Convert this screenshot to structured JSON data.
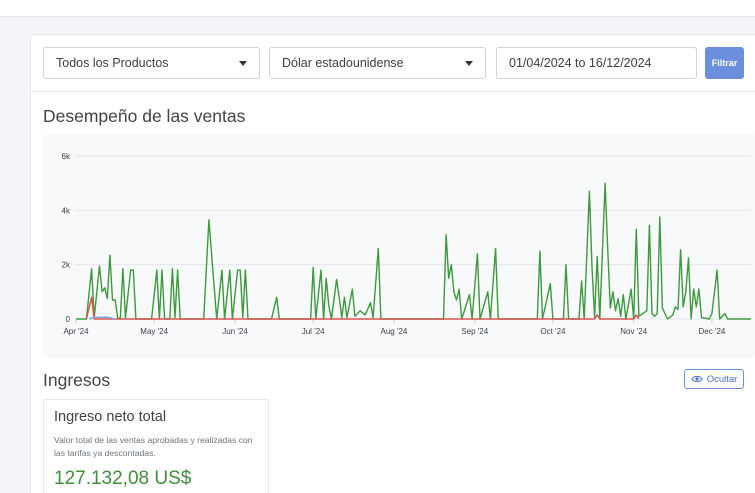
{
  "filters": {
    "product": "Todos los Productos",
    "currency": "Dólar estadounidense",
    "date_range": "01/04/2024 to 16/12/2024",
    "filter_button": "Filtrar"
  },
  "sales": {
    "title": "Desempeño de las ventas"
  },
  "chart_data": {
    "type": "line",
    "x_ticks": [
      "Apr '24",
      "May '24",
      "Jun '24",
      "Jul '24",
      "Aug '24",
      "Sep '24",
      "Oct '24",
      "Nov '24",
      "Dec '24"
    ],
    "y_ticks": [
      "0",
      "2k",
      "4k",
      "6k"
    ],
    "ylim": [
      0,
      6000
    ],
    "xlim": [
      "2024-04-01",
      "2024-12-16"
    ],
    "grid": true,
    "colors": [
      "#3c9a3c",
      "#d9534f",
      "#7aa7d9"
    ],
    "series": [
      {
        "color": "#3c9a3c",
        "points": [
          [
            "2024-04-01",
            0
          ],
          [
            "2024-04-05",
            0
          ],
          [
            "2024-04-07",
            1850
          ],
          [
            "2024-04-08",
            50
          ],
          [
            "2024-04-10",
            1950
          ],
          [
            "2024-04-11",
            1000
          ],
          [
            "2024-04-12",
            1150
          ],
          [
            "2024-04-13",
            750
          ],
          [
            "2024-04-14",
            2350
          ],
          [
            "2024-04-15",
            700
          ],
          [
            "2024-04-16",
            700
          ],
          [
            "2024-04-17",
            50
          ],
          [
            "2024-04-18",
            0
          ],
          [
            "2024-04-19",
            1850
          ],
          [
            "2024-04-20",
            50
          ],
          [
            "2024-04-22",
            1800
          ],
          [
            "2024-04-23",
            1800
          ],
          [
            "2024-04-24",
            0
          ],
          [
            "2024-04-30",
            0
          ],
          [
            "2024-05-02",
            1800
          ],
          [
            "2024-05-03",
            0
          ],
          [
            "2024-05-04",
            1800
          ],
          [
            "2024-05-05",
            0
          ],
          [
            "2024-05-07",
            0
          ],
          [
            "2024-05-08",
            1850
          ],
          [
            "2024-05-09",
            50
          ],
          [
            "2024-05-10",
            1800
          ],
          [
            "2024-05-11",
            0
          ],
          [
            "2024-05-20",
            0
          ],
          [
            "2024-05-22",
            3650
          ],
          [
            "2024-05-25",
            0
          ],
          [
            "2024-05-27",
            1800
          ],
          [
            "2024-05-28",
            0
          ],
          [
            "2024-05-30",
            1800
          ],
          [
            "2024-05-31",
            0
          ],
          [
            "2024-06-02",
            1800
          ],
          [
            "2024-06-03",
            1800
          ],
          [
            "2024-06-04",
            50
          ],
          [
            "2024-06-05",
            1800
          ],
          [
            "2024-06-06",
            0
          ],
          [
            "2024-06-15",
            0
          ],
          [
            "2024-06-17",
            800
          ],
          [
            "2024-06-18",
            0
          ],
          [
            "2024-06-30",
            0
          ],
          [
            "2024-07-01",
            1900
          ],
          [
            "2024-07-02",
            0
          ],
          [
            "2024-07-04",
            1800
          ],
          [
            "2024-07-05",
            0
          ],
          [
            "2024-07-06",
            1500
          ],
          [
            "2024-07-07",
            500
          ],
          [
            "2024-07-08",
            0
          ],
          [
            "2024-07-10",
            1450
          ],
          [
            "2024-07-11",
            800
          ],
          [
            "2024-07-12",
            50
          ],
          [
            "2024-07-13",
            800
          ],
          [
            "2024-07-14",
            50
          ],
          [
            "2024-07-16",
            1100
          ],
          [
            "2024-07-17",
            100
          ],
          [
            "2024-07-19",
            300
          ],
          [
            "2024-07-21",
            150
          ],
          [
            "2024-07-23",
            600
          ],
          [
            "2024-07-24",
            50
          ],
          [
            "2024-07-26",
            2600
          ],
          [
            "2024-07-27",
            0
          ],
          [
            "2024-08-20",
            0
          ],
          [
            "2024-08-21",
            3100
          ],
          [
            "2024-08-22",
            1500
          ],
          [
            "2024-08-23",
            2000
          ],
          [
            "2024-08-24",
            1000
          ],
          [
            "2024-08-25",
            700
          ],
          [
            "2024-08-26",
            1100
          ],
          [
            "2024-08-27",
            0
          ],
          [
            "2024-08-30",
            900
          ],
          [
            "2024-08-31",
            0
          ],
          [
            "2024-09-02",
            2400
          ],
          [
            "2024-09-03",
            0
          ],
          [
            "2024-09-06",
            1000
          ],
          [
            "2024-09-07",
            0
          ],
          [
            "2024-09-09",
            2600
          ],
          [
            "2024-09-10",
            0
          ],
          [
            "2024-09-25",
            0
          ],
          [
            "2024-09-26",
            2500
          ],
          [
            "2024-09-27",
            0
          ],
          [
            "2024-09-30",
            1300
          ],
          [
            "2024-10-01",
            0
          ],
          [
            "2024-10-05",
            0
          ],
          [
            "2024-10-06",
            2000
          ],
          [
            "2024-10-07",
            0
          ],
          [
            "2024-10-11",
            0
          ],
          [
            "2024-10-12",
            1400
          ],
          [
            "2024-10-13",
            0
          ],
          [
            "2024-10-15",
            4700
          ],
          [
            "2024-10-16",
            1900
          ],
          [
            "2024-10-17",
            50
          ],
          [
            "2024-10-18",
            2300
          ],
          [
            "2024-10-19",
            0
          ],
          [
            "2024-10-21",
            5000
          ],
          [
            "2024-10-22",
            2600
          ],
          [
            "2024-10-23",
            400
          ],
          [
            "2024-10-24",
            1000
          ],
          [
            "2024-10-25",
            300
          ],
          [
            "2024-10-26",
            750
          ],
          [
            "2024-10-27",
            100
          ],
          [
            "2024-10-28",
            900
          ],
          [
            "2024-10-29",
            0
          ],
          [
            "2024-10-31",
            1100
          ],
          [
            "2024-11-01",
            0
          ],
          [
            "2024-11-02",
            3300
          ],
          [
            "2024-11-03",
            100
          ],
          [
            "2024-11-06",
            300
          ],
          [
            "2024-11-07",
            3450
          ],
          [
            "2024-11-08",
            200
          ],
          [
            "2024-11-09",
            100
          ],
          [
            "2024-11-10",
            200
          ],
          [
            "2024-11-11",
            3750
          ],
          [
            "2024-11-12",
            400
          ],
          [
            "2024-11-14",
            0
          ],
          [
            "2024-11-16",
            150
          ],
          [
            "2024-11-17",
            450
          ],
          [
            "2024-11-18",
            350
          ],
          [
            "2024-11-19",
            2550
          ],
          [
            "2024-11-20",
            450
          ],
          [
            "2024-11-21",
            1000
          ],
          [
            "2024-11-22",
            2250
          ],
          [
            "2024-11-23",
            0
          ],
          [
            "2024-11-24",
            1100
          ],
          [
            "2024-11-25",
            450
          ],
          [
            "2024-11-26",
            1100
          ],
          [
            "2024-11-27",
            50
          ],
          [
            "2024-11-30",
            0
          ],
          [
            "2024-12-01",
            200
          ],
          [
            "2024-12-03",
            1800
          ],
          [
            "2024-12-04",
            0
          ],
          [
            "2024-12-06",
            200
          ],
          [
            "2024-12-07",
            0
          ],
          [
            "2024-12-16",
            0
          ]
        ]
      },
      {
        "color": "#d9534f",
        "points": [
          [
            "2024-04-05",
            0
          ],
          [
            "2024-04-07",
            800
          ],
          [
            "2024-04-08",
            0
          ],
          [
            "2024-10-17",
            0
          ],
          [
            "2024-10-18",
            150
          ],
          [
            "2024-10-19",
            0
          ],
          [
            "2024-11-01",
            0
          ],
          [
            "2024-11-02",
            150
          ],
          [
            "2024-11-03",
            0
          ]
        ]
      },
      {
        "color": "#7aa7d9",
        "points": [
          [
            "2024-04-06",
            0
          ],
          [
            "2024-04-08",
            60
          ],
          [
            "2024-04-13",
            70
          ],
          [
            "2024-04-16",
            0
          ]
        ]
      }
    ]
  },
  "revenue": {
    "title": "Ingresos",
    "hide_button": "Ocultar",
    "card": {
      "title": "Ingreso neto total",
      "description": "Valor total de las ventas aprobadas y realizadas con las tarifas ya descontadas.",
      "value": "127.132,08 US$"
    }
  }
}
